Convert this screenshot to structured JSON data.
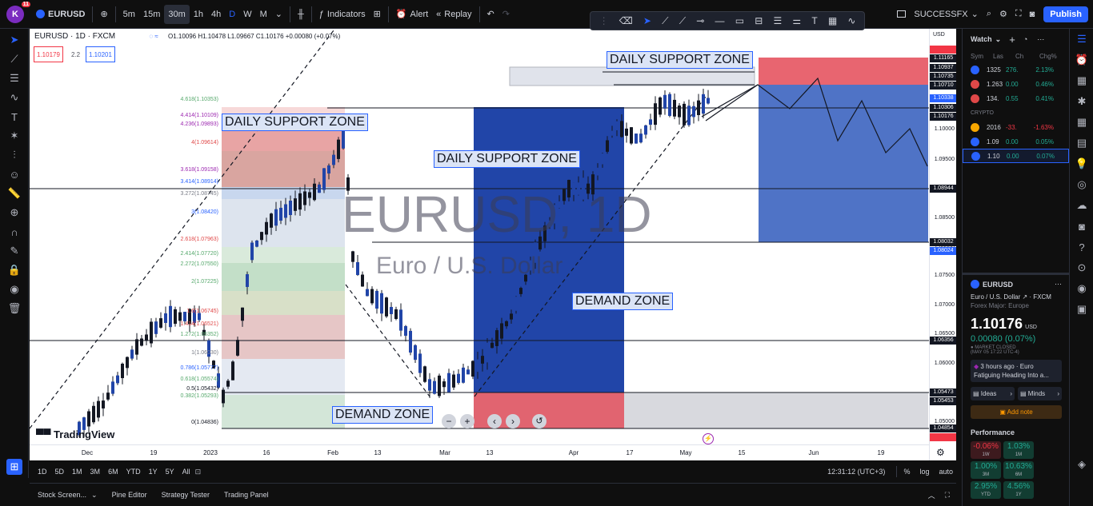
{
  "topbar": {
    "avatar_letter": "K",
    "avatar_badge": "11",
    "symbol": "EURUSD",
    "timeframes": [
      "5m",
      "15m",
      "30m",
      "1h",
      "4h",
      "D",
      "W",
      "M"
    ],
    "indicators": "Indicators",
    "alert": "Alert",
    "replay": "Replay",
    "layout_name": "SUCCESSFX",
    "publish": "Publish"
  },
  "chart": {
    "title_line": "EURUSD · 1D · FXCM",
    "ohlc": "O1.10096 H1.10478 L1.09667 C1.10176 +0.00080 (+0.07%)",
    "bid": "1.10179",
    "spread": "2.2",
    "ask": "1.10201",
    "watermark_symbol": "EURUSD, 1D",
    "watermark_name": "Euro / U.S. Dollar",
    "zones": [
      "DAILY SUPPORT ZONE",
      "DAILY SUPPORT ZONE",
      "DAILY SUPPORT ZONE",
      "DEMAND ZONE",
      "DEMAND ZONE"
    ],
    "fib_levels": [
      "4.618(1.10353)",
      "4.414(1.10109)",
      "4.236(1.09893)",
      "4(1.09614)",
      "3.618(1.09158)",
      "3.414(1.08914)",
      "3.272(1.08745)",
      "3(1.08420)",
      "2.618(1.07963)",
      "2.414(1.07720)",
      "2.272(1.07550)",
      "2(1.07225)",
      "1.6(1.06745)",
      "1.414(1.06521)",
      "1.272(1.06352)",
      "1(1.06030)",
      "0.786(1.05777)",
      "0.618(1.05574)",
      "0.5(1.05432)",
      "0.382(1.05293)",
      "0(1.04836)"
    ],
    "logo": "TradingView",
    "price_currency": "USD",
    "price_ticks": [
      "1.10000",
      "1.09500",
      "1.09000",
      "1.08500",
      "1.08000",
      "1.07500",
      "1.07000",
      "1.06500",
      "1.06000",
      "1.05500",
      "1.05000"
    ],
    "price_labels": [
      {
        "text": "1.11165",
        "color": "red"
      },
      {
        "text": "1.11165",
        "color": "dark"
      },
      {
        "text": "1.10937",
        "color": "dark"
      },
      {
        "text": "1.10735",
        "color": "dark"
      },
      {
        "text": "1.10710",
        "color": "dark"
      },
      {
        "text": "1.10338",
        "color": "blue"
      },
      {
        "text": "1.10306",
        "color": "dark"
      },
      {
        "text": "1.10176",
        "color": "dark"
      },
      {
        "text": "1.08944",
        "color": "dark"
      },
      {
        "text": "1.08032",
        "color": "dark"
      },
      {
        "text": "1.08024",
        "color": "blue"
      },
      {
        "text": "1.06356",
        "color": "dark"
      },
      {
        "text": "1.05473",
        "color": "dark"
      },
      {
        "text": "1.05453",
        "color": "dark"
      },
      {
        "text": "1.04854",
        "color": "dark"
      },
      {
        "text": "1.04846",
        "color": "red"
      }
    ],
    "time_ticks": [
      "Dec",
      "19",
      "2023",
      "16",
      "Feb",
      "13",
      "Mar",
      "13",
      "Apr",
      "17",
      "May",
      "15",
      "Jun",
      "19"
    ]
  },
  "bottom": {
    "ranges": [
      "1D",
      "5D",
      "1M",
      "3M",
      "6M",
      "YTD",
      "1Y",
      "5Y",
      "All"
    ],
    "clock": "12:31:12 (UTC+3)",
    "pct": "%",
    "log": "log",
    "auto": "auto",
    "tabs": [
      "Stock Screen...",
      "Pine Editor",
      "Strategy Tester",
      "Trading Panel"
    ]
  },
  "watchlist": {
    "title": "Watch",
    "headers": [
      "Sym",
      "Las",
      "Ch",
      "Chg%"
    ],
    "section": "CRYPTO",
    "rows": [
      {
        "last": "1325",
        "ch": "276.",
        "chp": "2.13%",
        "dir": "up",
        "color": "#2962ff"
      },
      {
        "last": "1.263",
        "ch": "0.00",
        "chp": "0.46%",
        "dir": "up",
        "color": "#e04848"
      },
      {
        "last": "134.",
        "ch": "0.55",
        "chp": "0.41%",
        "dir": "up",
        "color": "#e04848"
      },
      {
        "last": "2016",
        "ch": "-33.",
        "chp": "-1.63%",
        "dir": "down",
        "color": "#f7a600"
      },
      {
        "last": "1.09",
        "ch": "0.00",
        "chp": "0.05%",
        "dir": "up",
        "color": "#2962ff"
      },
      {
        "last": "1.10",
        "ch": "0.00",
        "chp": "0.07%",
        "dir": "up",
        "color": "#2962ff"
      }
    ],
    "detail_symbol": "EURUSD",
    "detail_name": "Euro / U.S. Dollar",
    "detail_exchange": "· FXCM",
    "detail_category": "Forex Major: Europe",
    "detail_price": "1.10176",
    "detail_currency": "USD",
    "detail_change": "0.00080 (0.07%)",
    "market_status": "MARKET CLOSED",
    "market_time": "(MAY 05 17:22 UTC-4)",
    "news_time": "3 hours ago",
    "news_source": "Euro",
    "news_text": "Fatiguing Heading Into a...",
    "ideas": "Ideas",
    "minds": "Minds",
    "add_note": "Add note",
    "performance": "Performance",
    "perf": [
      {
        "v": "-0.06%",
        "p": "1W",
        "dir": "down"
      },
      {
        "v": "1.03%",
        "p": "1M",
        "dir": "up"
      },
      {
        "v": "1.00%",
        "p": "3M",
        "dir": "up"
      },
      {
        "v": "10.63%",
        "p": "6M",
        "dir": "up"
      },
      {
        "v": "2.95%",
        "p": "YTD",
        "dir": "up"
      },
      {
        "v": "4.56%",
        "p": "1Y",
        "dir": "up"
      }
    ]
  }
}
